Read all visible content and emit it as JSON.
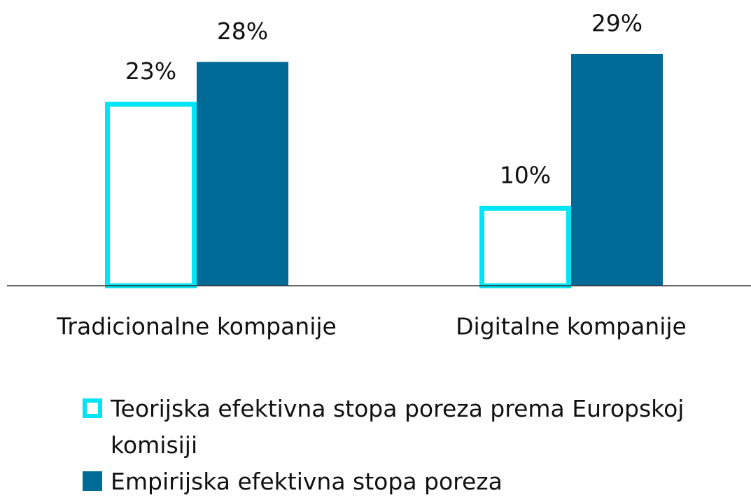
{
  "chart_data": {
    "type": "bar",
    "categories": [
      "Tradicionalne kompanije",
      "Digitalne kompanije"
    ],
    "series": [
      {
        "name": "Teorijska efektivna stopa poreza prema Europskoj komisiji",
        "color": "#00e5f5",
        "style": "outline",
        "values": [
          23,
          10
        ],
        "value_labels": [
          "23%",
          "10%"
        ]
      },
      {
        "name": "Empirijska efektivna stopa poreza",
        "color": "#006a96",
        "style": "filled",
        "values": [
          28,
          29
        ],
        "value_labels": [
          "28%",
          "29%"
        ]
      }
    ]
  }
}
